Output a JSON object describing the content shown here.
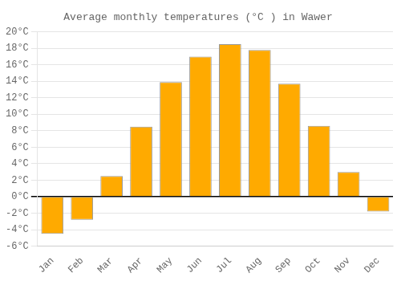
{
  "chart_data": {
    "type": "bar",
    "title": "Average monthly temperatures (°C ) in Wawer",
    "categories": [
      "Jan",
      "Feb",
      "Mar",
      "Apr",
      "May",
      "Jun",
      "Jul",
      "Aug",
      "Sep",
      "Oct",
      "Nov",
      "Dec"
    ],
    "values": [
      -4.5,
      -2.8,
      2.5,
      8.5,
      13.9,
      17.0,
      18.5,
      17.8,
      13.7,
      8.6,
      3.0,
      -1.8
    ],
    "color": "#FFAA00",
    "ylim": [
      -6,
      20
    ],
    "yticks": [
      {
        "value": -6,
        "label": "-6°C"
      },
      {
        "value": -4,
        "label": "-4°C"
      },
      {
        "value": -2,
        "label": "-2°C"
      },
      {
        "value": 0,
        "label": "0°C"
      },
      {
        "value": 2,
        "label": "2°C"
      },
      {
        "value": 4,
        "label": "4°C"
      },
      {
        "value": 6,
        "label": "6°C"
      },
      {
        "value": 8,
        "label": "8°C"
      },
      {
        "value": 10,
        "label": "10°C"
      },
      {
        "value": 12,
        "label": "12°C"
      },
      {
        "value": 14,
        "label": "14°C"
      },
      {
        "value": 16,
        "label": "16°C"
      },
      {
        "value": 18,
        "label": "18°C"
      },
      {
        "value": 20,
        "label": "20°C"
      }
    ],
    "grid": true
  }
}
